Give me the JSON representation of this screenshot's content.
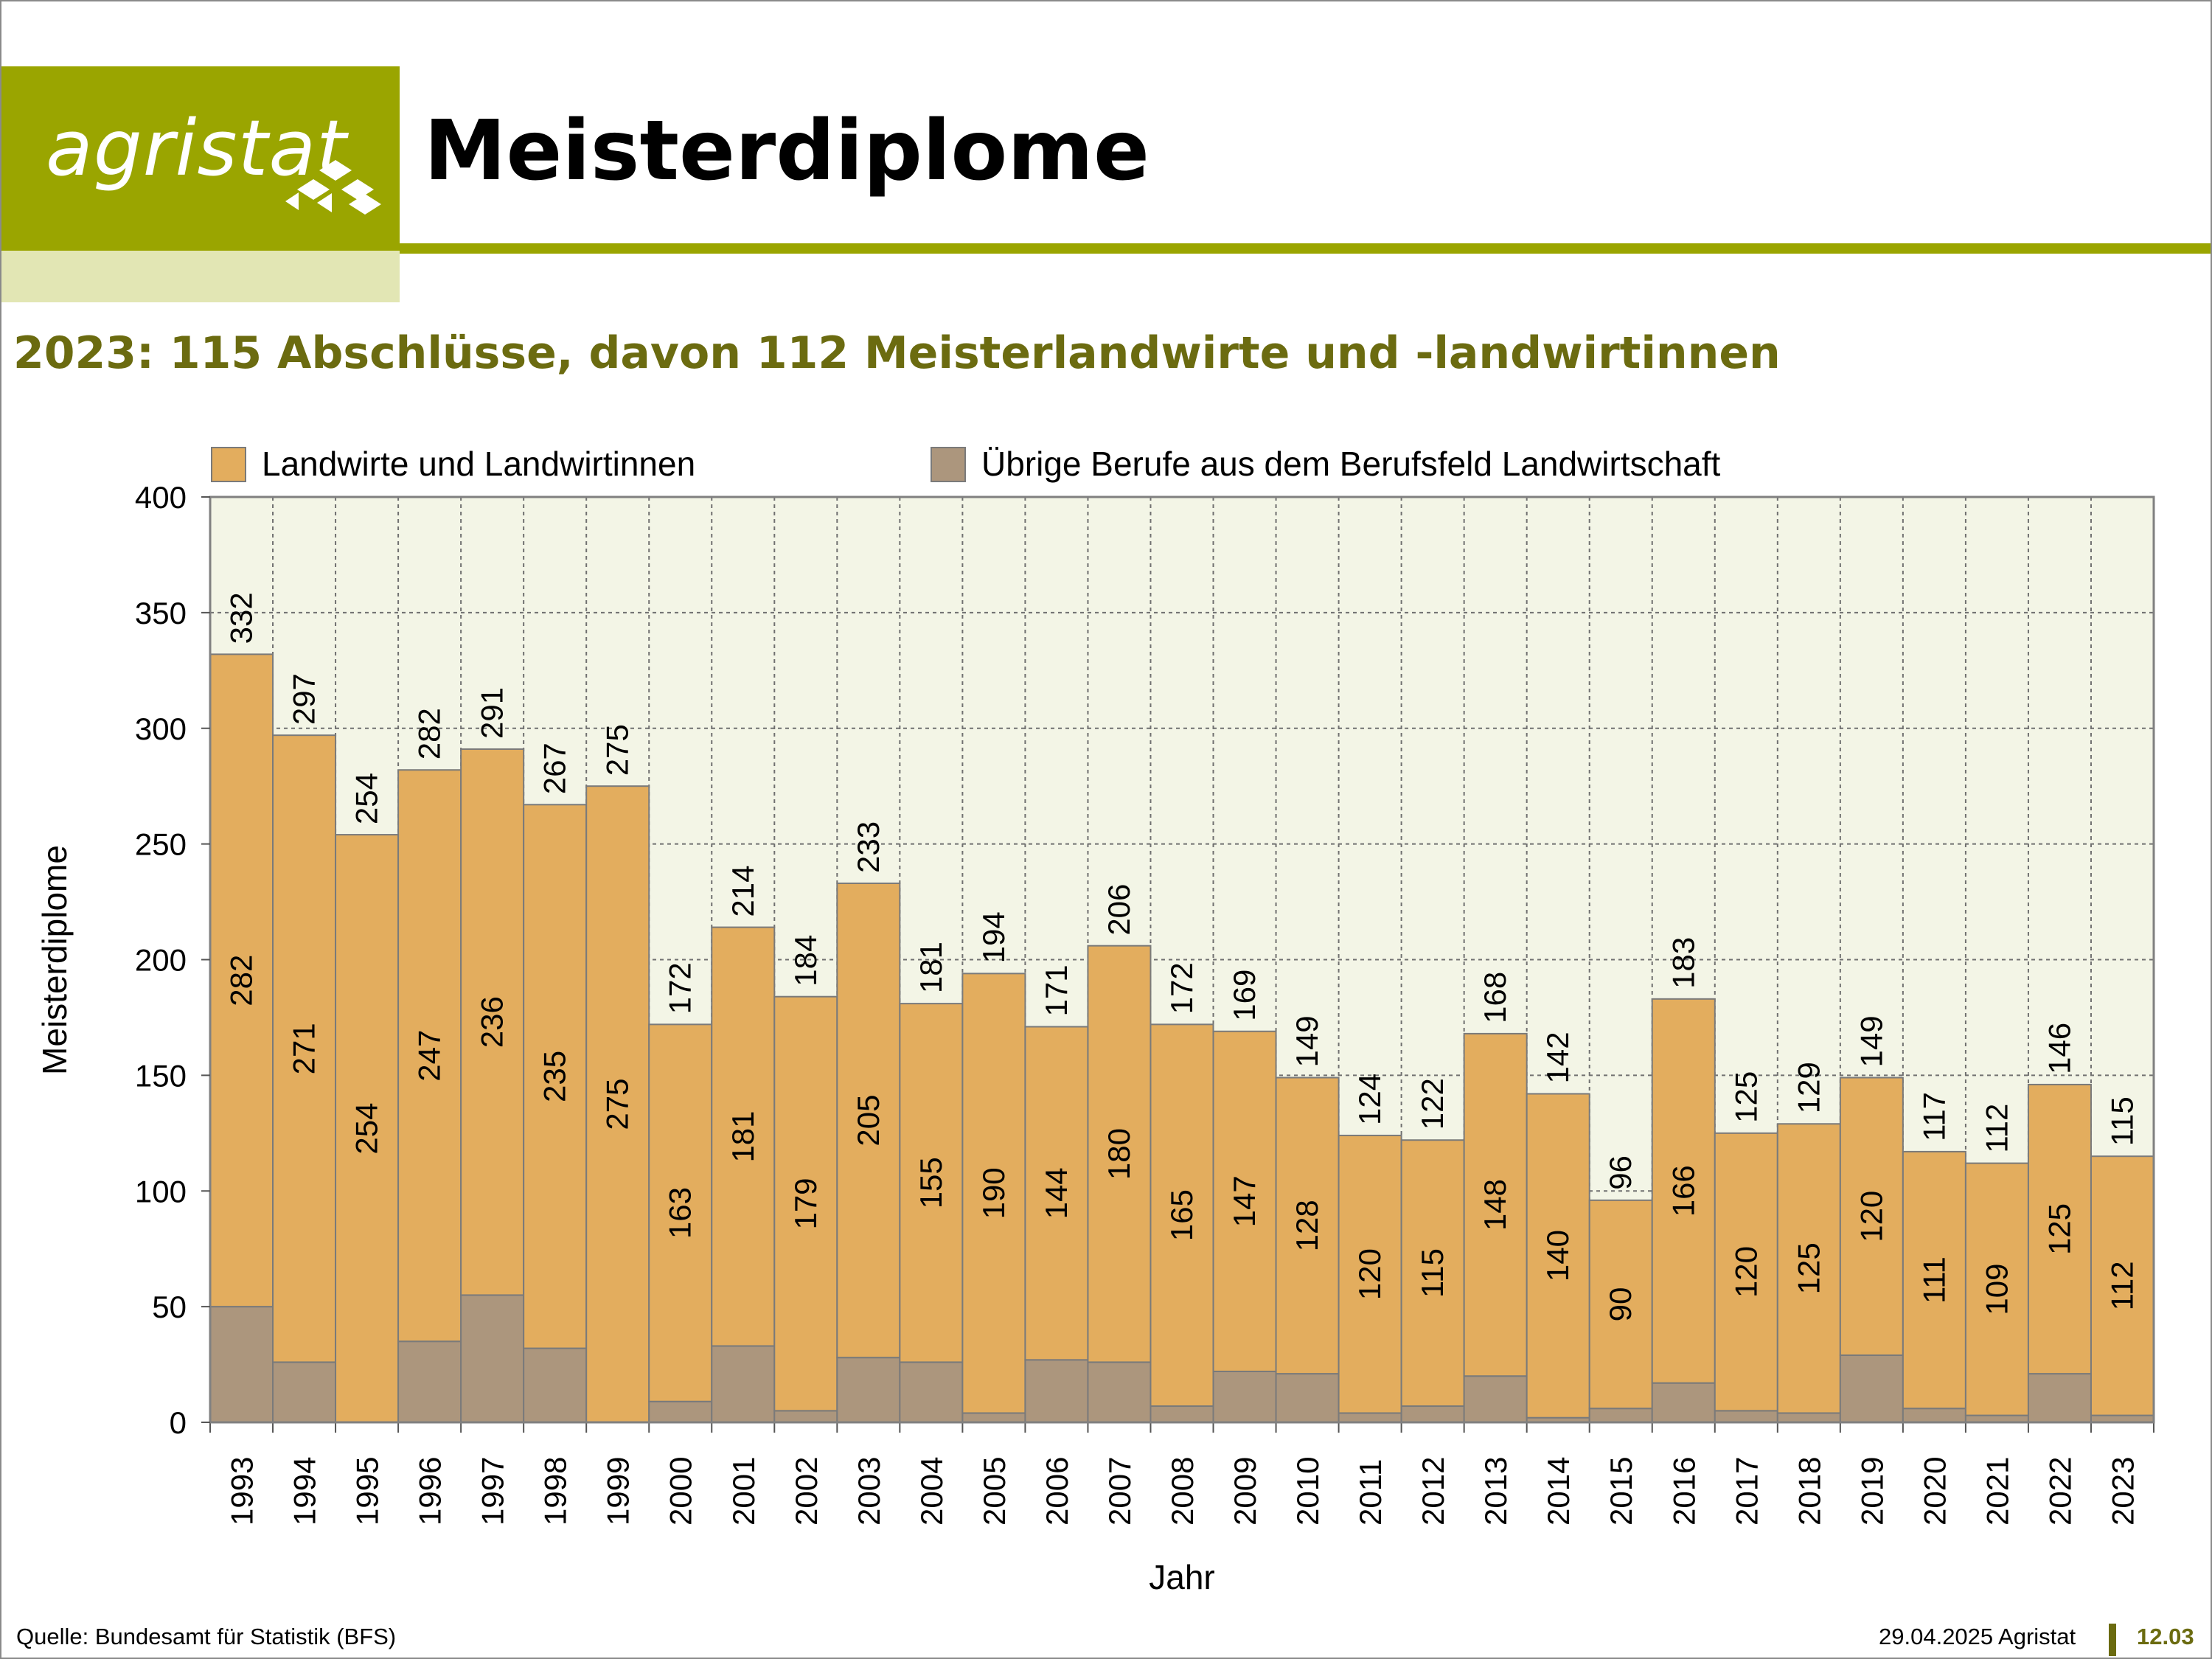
{
  "logo": {
    "text": "agristat",
    "icon": "agristat-diamond-mark"
  },
  "header": {
    "title": "Meisterdiplome"
  },
  "subtitle": "2023: 115 Abschlüsse, davon 112 Meisterlandwirte und -landwirtinnen",
  "footer": {
    "source": "Quelle: Bundesamt für Statistik (BFS)",
    "date_org": "29.04.2025 Agristat",
    "code": "12.03"
  },
  "colors": {
    "brand": "#9aa500",
    "brand_light": "#e2e6b4",
    "subtitle": "#6b6b10",
    "landwirte": "#e3ad5e",
    "uebrige": "#ac967d",
    "plot_bg": "#f3f5e6"
  },
  "chart_data": {
    "type": "bar",
    "stacked": true,
    "categories": [
      "1993",
      "1994",
      "1995",
      "1996",
      "1997",
      "1998",
      "1999",
      "2000",
      "2001",
      "2002",
      "2003",
      "2004",
      "2005",
      "2006",
      "2007",
      "2008",
      "2009",
      "2010",
      "2011",
      "2012",
      "2013",
      "2014",
      "2015",
      "2016",
      "2017",
      "2018",
      "2019",
      "2020",
      "2021",
      "2022",
      "2023"
    ],
    "series": [
      {
        "name": "Übrige Berufe aus dem Berufsfeld Landwirtschaft",
        "values": [
          50,
          26,
          0,
          35,
          55,
          32,
          0,
          9,
          33,
          5,
          28,
          26,
          4,
          27,
          26,
          7,
          22,
          21,
          4,
          7,
          20,
          2,
          6,
          17,
          5,
          4,
          29,
          6,
          3,
          21,
          3
        ]
      },
      {
        "name": "Landwirte und Landwirtinnen",
        "values": [
          282,
          271,
          254,
          247,
          236,
          235,
          275,
          163,
          181,
          179,
          205,
          155,
          190,
          144,
          180,
          165,
          147,
          128,
          120,
          115,
          148,
          140,
          90,
          166,
          120,
          125,
          120,
          111,
          109,
          125,
          112
        ]
      }
    ],
    "totals": [
      332,
      297,
      254,
      282,
      291,
      267,
      275,
      172,
      214,
      184,
      233,
      181,
      194,
      171,
      206,
      172,
      169,
      149,
      124,
      122,
      168,
      142,
      96,
      183,
      125,
      129,
      149,
      117,
      112,
      146,
      115
    ],
    "xlabel": "Jahr",
    "ylabel": "Meisterdiplome",
    "ylim": [
      0,
      400
    ],
    "yticks": [
      0,
      50,
      100,
      150,
      200,
      250,
      300,
      350,
      400
    ],
    "grid": true,
    "legend_position": "top"
  }
}
